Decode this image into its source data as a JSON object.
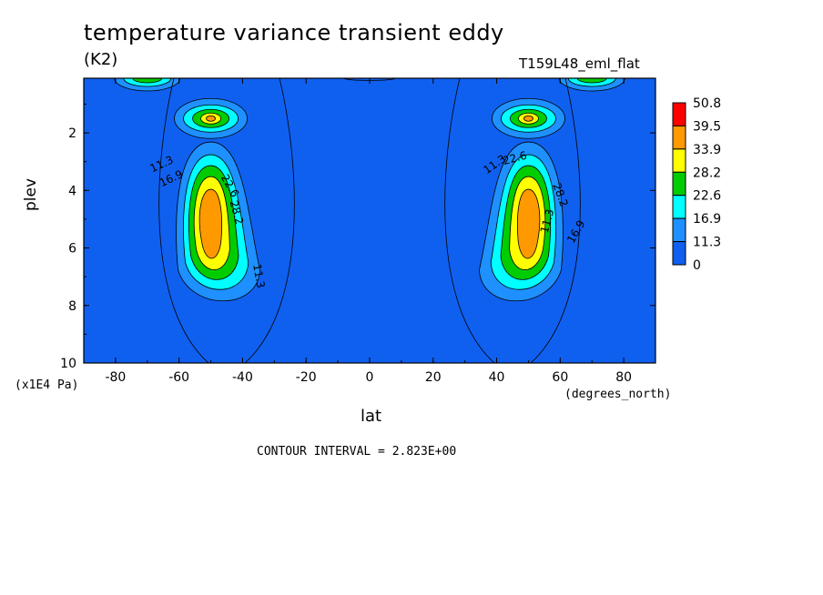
{
  "chart_data": {
    "type": "contour",
    "title": "temperature variance transient eddy",
    "units": "(K2)",
    "run_label": "T159L48_eml_flat",
    "xlabel": "lat",
    "x_units": "(degrees_north)",
    "ylabel": "plev",
    "y_units": "(x1E4 Pa)",
    "x_ticks": [
      "-80",
      "-60",
      "-40",
      "-20",
      "0",
      "20",
      "40",
      "60",
      "80"
    ],
    "y_ticks": [
      "2",
      "4",
      "6",
      "8",
      "10"
    ],
    "xlim": [
      -90,
      90
    ],
    "ylim": [
      10,
      0.1
    ],
    "contour_interval_text": "CONTOUR INTERVAL = 2.823E+00",
    "contour_labels": [
      "11.3",
      "16.9",
      "22.6",
      "28.2",
      "11.3",
      "11.3",
      "16.9",
      "22.6",
      "28.2",
      "11.3"
    ],
    "colorbar": {
      "labels": [
        "50.8",
        "39.5",
        "33.9",
        "28.2",
        "22.6",
        "16.9",
        "11.3",
        "0"
      ],
      "colors": [
        "#ff0000",
        "#ff9900",
        "#ffff00",
        "#00cc00",
        "#00ffff",
        "#1e90ff",
        "#1060f0"
      ]
    },
    "features": [
      {
        "name": "SH midlatitude maximum",
        "lat": -50,
        "plev": 5,
        "peak": 39.5
      },
      {
        "name": "NH midlatitude maximum",
        "lat": 50,
        "plev": 5,
        "peak": 39.5
      },
      {
        "name": "SH upper secondary maximum",
        "lat": -50,
        "plev": 1.5,
        "peak": 39.5
      },
      {
        "name": "NH upper secondary maximum",
        "lat": 50,
        "plev": 1.5,
        "peak": 39.5
      }
    ]
  }
}
